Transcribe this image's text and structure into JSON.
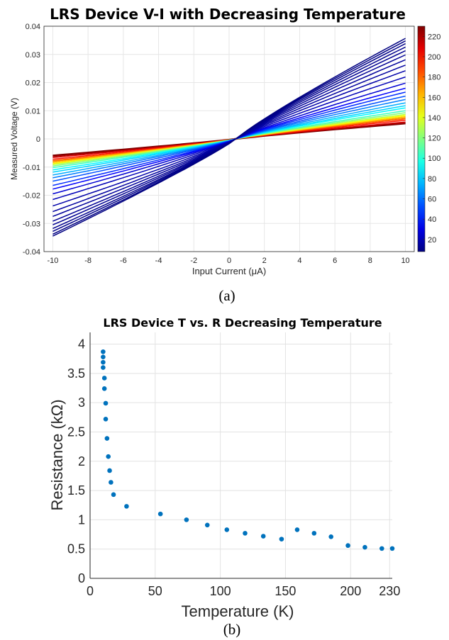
{
  "chart_data": [
    {
      "type": "line",
      "title": "LRS Device V-I with Decreasing Temperature",
      "xlabel": "Input Current (μA)",
      "ylabel": "Measured Voltage (V)",
      "xlim": [
        -10.5,
        10.5
      ],
      "ylim": [
        -0.04,
        0.04
      ],
      "x_ticks": [
        -10,
        -8,
        -6,
        -4,
        -2,
        0,
        2,
        4,
        6,
        8,
        10
      ],
      "y_ticks": [
        -0.04,
        -0.03,
        -0.02,
        -0.01,
        0,
        0.01,
        0.02,
        0.03,
        0.04
      ],
      "y_tick_labels": [
        "-0.04",
        "-0.03",
        "-0.02",
        "-0.01",
        "0",
        "0.01",
        "0.02",
        "0.03",
        "0.04"
      ],
      "grid": true,
      "colorbar": {
        "colormap": "jet",
        "range": [
          8,
          230
        ],
        "ticks": [
          20,
          40,
          60,
          80,
          100,
          120,
          140,
          160,
          180,
          200,
          220
        ]
      },
      "series": [
        {
          "temperature": 8,
          "v_at_minus10": -0.0345,
          "v_at_plus10": 0.0357
        },
        {
          "temperature": 9,
          "v_at_minus10": -0.0338,
          "v_at_plus10": 0.0348
        },
        {
          "temperature": 10,
          "v_at_minus10": -0.0328,
          "v_at_plus10": 0.0338
        },
        {
          "temperature": 11,
          "v_at_minus10": -0.0318,
          "v_at_plus10": 0.0326
        },
        {
          "temperature": 12,
          "v_at_minus10": -0.0305,
          "v_at_plus10": 0.0313
        },
        {
          "temperature": 13,
          "v_at_minus10": -0.0292,
          "v_at_plus10": 0.0298
        },
        {
          "temperature": 14,
          "v_at_minus10": -0.0275,
          "v_at_plus10": 0.0281
        },
        {
          "temperature": 15,
          "v_at_minus10": -0.0258,
          "v_at_plus10": 0.0262
        },
        {
          "temperature": 17,
          "v_at_minus10": -0.0238,
          "v_at_plus10": 0.0242
        },
        {
          "temperature": 20,
          "v_at_minus10": -0.0215,
          "v_at_plus10": 0.022
        },
        {
          "temperature": 26,
          "v_at_minus10": -0.0195,
          "v_at_plus10": 0.0198
        },
        {
          "temperature": 35,
          "v_at_minus10": -0.0178,
          "v_at_plus10": 0.018
        },
        {
          "temperature": 45,
          "v_at_minus10": -0.0165,
          "v_at_plus10": 0.0166
        },
        {
          "temperature": 53,
          "v_at_minus10": -0.015,
          "v_at_plus10": 0.0152
        },
        {
          "temperature": 63,
          "v_at_minus10": -0.0138,
          "v_at_plus10": 0.014
        },
        {
          "temperature": 73,
          "v_at_minus10": -0.0128,
          "v_at_plus10": 0.0128
        },
        {
          "temperature": 82,
          "v_at_minus10": -0.0118,
          "v_at_plus10": 0.0118
        },
        {
          "temperature": 90,
          "v_at_minus10": -0.011,
          "v_at_plus10": 0.011
        },
        {
          "temperature": 105,
          "v_at_minus10": -0.0102,
          "v_at_plus10": 0.01
        },
        {
          "temperature": 119,
          "v_at_minus10": -0.0096,
          "v_at_plus10": 0.0093
        },
        {
          "temperature": 132,
          "v_at_minus10": -0.0091,
          "v_at_plus10": 0.0087
        },
        {
          "temperature": 146,
          "v_at_minus10": -0.0088,
          "v_at_plus10": 0.0083
        },
        {
          "temperature": 159,
          "v_at_minus10": -0.0084,
          "v_at_plus10": 0.0079
        },
        {
          "temperature": 172,
          "v_at_minus10": -0.008,
          "v_at_plus10": 0.0075
        },
        {
          "temperature": 185,
          "v_at_minus10": -0.0077,
          "v_at_plus10": 0.0071
        },
        {
          "temperature": 198,
          "v_at_minus10": -0.0072,
          "v_at_plus10": 0.0066
        },
        {
          "temperature": 211,
          "v_at_minus10": -0.0066,
          "v_at_plus10": 0.006
        },
        {
          "temperature": 224,
          "v_at_minus10": -0.0062,
          "v_at_plus10": 0.0057
        },
        {
          "temperature": 230,
          "v_at_minus10": -0.0059,
          "v_at_plus10": 0.0055
        }
      ]
    },
    {
      "type": "scatter",
      "title": "LRS Device T vs. R Decreasing Temperature",
      "xlabel": "Temperature (K)",
      "ylabel": "Resistance (kΩ)",
      "xlim": [
        0,
        232
      ],
      "ylim": [
        0,
        4.2
      ],
      "x_ticks": [
        0,
        50,
        100,
        150,
        200,
        230
      ],
      "y_ticks": [
        0,
        0.5,
        1,
        1.5,
        2,
        2.5,
        3,
        3.5,
        4
      ],
      "grid": true,
      "color": "#0072BD",
      "x": [
        10,
        10,
        10,
        10,
        11,
        11,
        12,
        12,
        13,
        14,
        15,
        16,
        18,
        28,
        54,
        74,
        90,
        105,
        119,
        133,
        147,
        159,
        172,
        185,
        198,
        211,
        224,
        232
      ],
      "y": [
        3.87,
        3.78,
        3.69,
        3.6,
        3.42,
        3.24,
        2.99,
        2.72,
        2.39,
        2.08,
        1.84,
        1.64,
        1.43,
        1.23,
        1.1,
        1.0,
        0.91,
        0.83,
        0.77,
        0.72,
        0.67,
        0.83,
        0.77,
        0.71,
        0.56,
        0.53,
        0.51,
        0.51
      ]
    }
  ],
  "captions": {
    "a": "(a)",
    "b": "(b)"
  }
}
